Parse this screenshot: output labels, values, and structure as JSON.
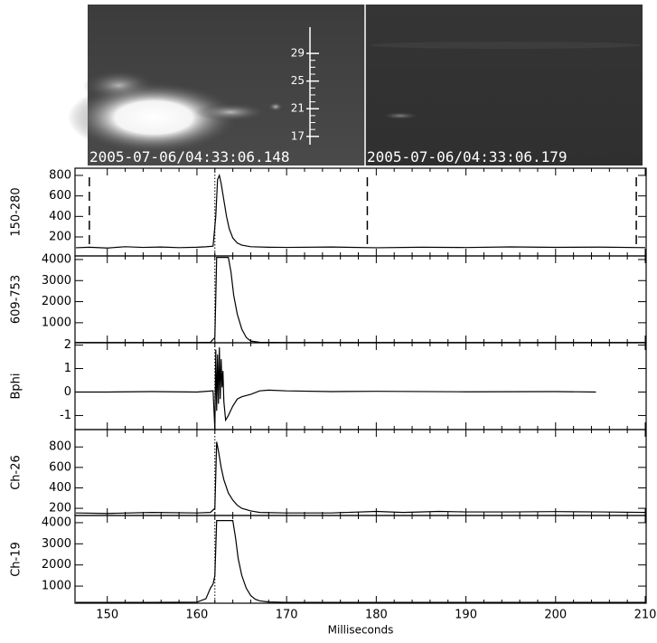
{
  "images": [
    {
      "timestamp": "2005-07-06/04:33:06.148"
    },
    {
      "timestamp": "2005-07-06/04:33:06.179"
    }
  ],
  "image_scale": {
    "lim": [
      15.8,
      32.8
    ],
    "ticks": [
      17,
      21,
      25,
      29
    ]
  },
  "chart_data": [
    {
      "type": "line",
      "ylabel": "150-280",
      "xlim": [
        146.4,
        210.1
      ],
      "ylim": [
        15,
        870
      ],
      "yticks": [
        200,
        400,
        600,
        800
      ],
      "vlines": [
        {
          "value": 162,
          "style": "dotted"
        },
        {
          "value": 148,
          "style": "dashed"
        },
        {
          "value": 179,
          "style": "dashed"
        },
        {
          "value": 209,
          "style": "dashed"
        }
      ],
      "series": [
        {
          "color": "#000000",
          "x": [
            146.5,
            148,
            150,
            152,
            154,
            156,
            158,
            160,
            161,
            161.8,
            162.1,
            162.3,
            162.5,
            162.7,
            163,
            163.3,
            163.6,
            164,
            164.5,
            165,
            166,
            168,
            170,
            175,
            180,
            185,
            190,
            195,
            200,
            205,
            210
          ],
          "values": [
            95,
            100,
            92,
            105,
            98,
            102,
            96,
            100,
            104,
            110,
            400,
            760,
            800,
            720,
            560,
            400,
            280,
            190,
            140,
            120,
            105,
            100,
            98,
            102,
            95,
            100,
            97,
            103,
            99,
            101,
            96
          ]
        }
      ]
    },
    {
      "type": "line",
      "ylabel": "609-753",
      "xlim": [
        146.4,
        210.1
      ],
      "ylim": [
        50,
        4170
      ],
      "yticks": [
        1000,
        2000,
        3000,
        4000
      ],
      "vlines": [
        {
          "value": 162,
          "style": "dotted"
        }
      ],
      "series": [
        {
          "color": "#000000",
          "x": [
            146.5,
            150,
            155,
            160,
            161.5,
            162,
            162.2,
            162.4,
            163,
            163.5,
            163.8,
            164.1,
            164.5,
            165,
            165.5,
            166,
            167,
            170,
            180,
            190,
            200,
            210
          ],
          "values": [
            60,
            60,
            60,
            60,
            70,
            300,
            4100,
            4100,
            4100,
            4100,
            3400,
            2300,
            1400,
            700,
            300,
            130,
            70,
            60,
            60,
            60,
            60,
            60
          ]
        }
      ]
    },
    {
      "type": "line",
      "ylabel": "Bphi",
      "xlim": [
        146.4,
        210.1
      ],
      "ylim": [
        -1.6,
        2.1
      ],
      "yticks": [
        -1,
        0,
        1,
        2
      ],
      "vlines": [
        {
          "value": 162,
          "style": "dotted"
        }
      ],
      "series": [
        {
          "color": "#000000",
          "x": [
            146.5,
            150,
            155,
            160,
            161.8,
            162,
            162.1,
            162.2,
            162.3,
            162.4,
            162.5,
            162.6,
            162.7,
            162.8,
            162.9,
            163,
            163.2,
            163.5,
            164,
            164.5,
            165,
            166,
            167,
            168,
            170,
            175,
            180,
            190,
            200,
            204.5
          ],
          "values": [
            0,
            0,
            0.02,
            0,
            0.05,
            -1.6,
            1.8,
            -0.8,
            1.6,
            -0.5,
            1.9,
            -0.3,
            1.4,
            0.2,
            0.9,
            -0.4,
            -1.2,
            -1.0,
            -0.6,
            -0.3,
            -0.2,
            -0.1,
            0.05,
            0.08,
            0.05,
            0.02,
            0.03,
            0.01,
            0.02,
            0
          ]
        }
      ]
    },
    {
      "type": "line",
      "ylabel": "Ch-26",
      "xlim": [
        146.4,
        210.1
      ],
      "ylim": [
        130,
        970
      ],
      "yticks": [
        200,
        400,
        600,
        800
      ],
      "vlines": [
        {
          "value": 162,
          "style": "dotted"
        }
      ],
      "series": [
        {
          "color": "#000000",
          "x": [
            146.5,
            150,
            155,
            160,
            161.5,
            162,
            162.2,
            162.4,
            162.7,
            163,
            163.5,
            164,
            164.5,
            165,
            166,
            167,
            170,
            175,
            180,
            183,
            187,
            190,
            195,
            200,
            205,
            210
          ],
          "values": [
            155,
            150,
            160,
            155,
            160,
            200,
            850,
            760,
            600,
            480,
            350,
            280,
            230,
            200,
            175,
            160,
            155,
            155,
            170,
            160,
            170,
            165,
            165,
            168,
            165,
            160
          ]
        }
      ]
    },
    {
      "type": "line",
      "ylabel": "Ch-19",
      "xlabel": "Milliseconds",
      "xlim": [
        146.4,
        210.1
      ],
      "ylim": [
        190,
        4340
      ],
      "yticks": [
        1000,
        2000,
        3000,
        4000
      ],
      "xticks": [
        150,
        160,
        170,
        180,
        190,
        200,
        210
      ],
      "vlines": [
        {
          "value": 162,
          "style": "dotted"
        }
      ],
      "series": [
        {
          "color": "#000000",
          "x": [
            146.5,
            150,
            155,
            160,
            161,
            161.5,
            161.8,
            162,
            162.2,
            164,
            164.3,
            164.6,
            165,
            165.5,
            166,
            166.5,
            167,
            168,
            170,
            180,
            190,
            200,
            210
          ],
          "values": [
            230,
            230,
            230,
            240,
            400,
            900,
            1100,
            1500,
            4100,
            4100,
            3300,
            2300,
            1500,
            900,
            550,
            380,
            300,
            250,
            230,
            230,
            230,
            230,
            230
          ]
        }
      ]
    }
  ]
}
